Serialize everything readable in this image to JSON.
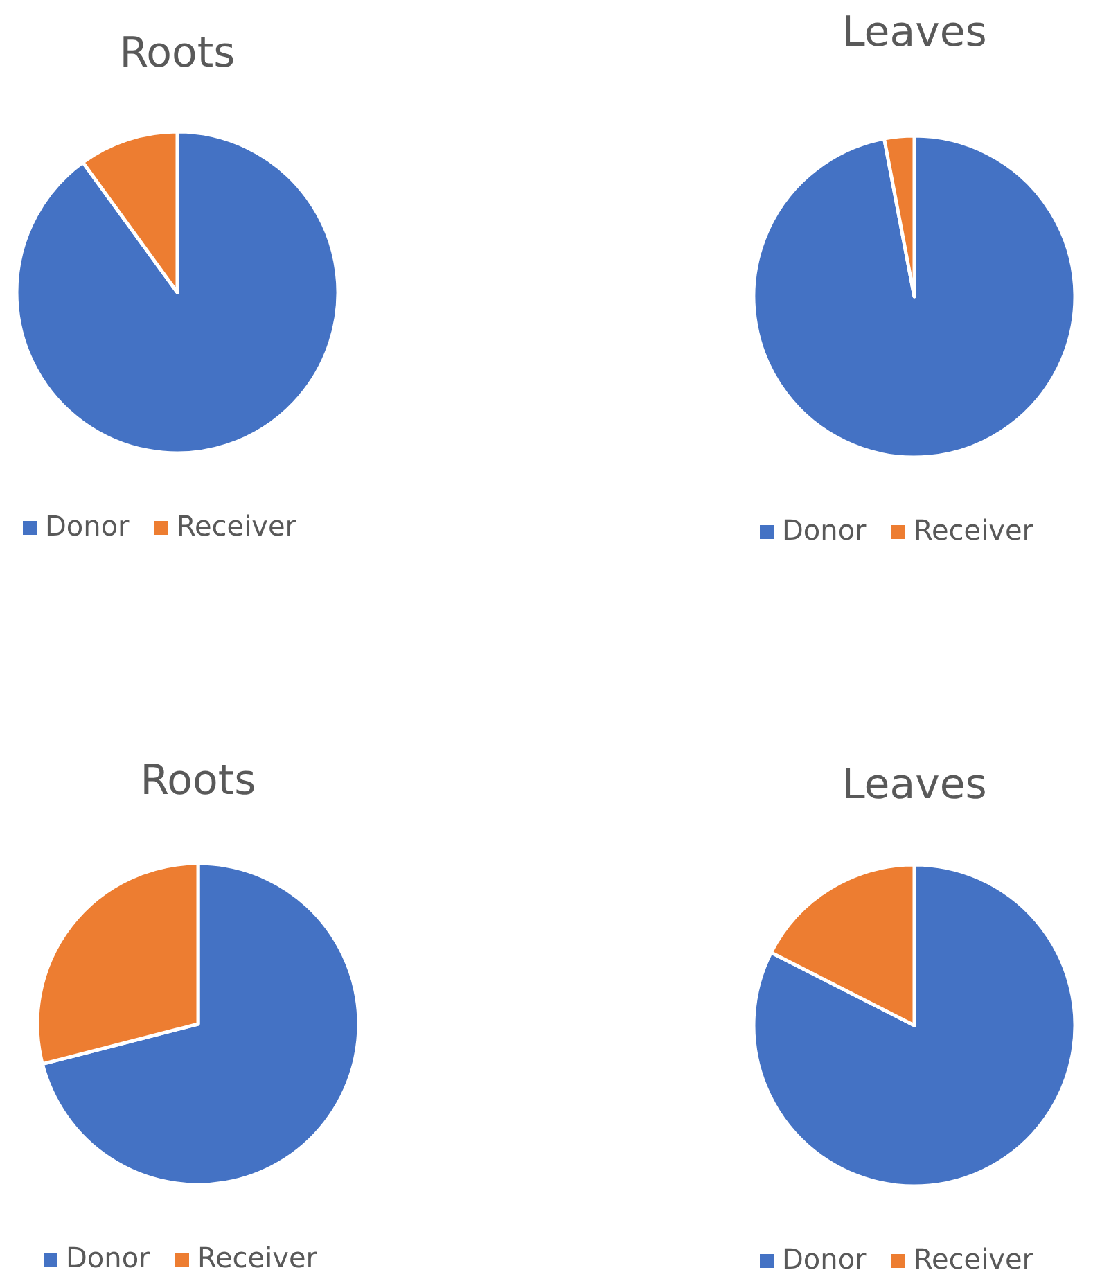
{
  "chart_data": [
    {
      "type": "pie",
      "title": "Roots",
      "categories": [
        "Donor",
        "Receiver"
      ],
      "values": [
        90,
        10
      ],
      "colors": [
        "#4472c4",
        "#ed7d31"
      ],
      "legend": "bottom"
    },
    {
      "type": "pie",
      "title": "Leaves",
      "categories": [
        "Donor",
        "Receiver"
      ],
      "values": [
        97,
        3
      ],
      "colors": [
        "#4472c4",
        "#ed7d31"
      ],
      "legend": "bottom"
    },
    {
      "type": "pie",
      "title": "Roots",
      "categories": [
        "Donor",
        "Receiver"
      ],
      "values": [
        71,
        29
      ],
      "colors": [
        "#4472c4",
        "#ed7d31"
      ],
      "legend": "bottom"
    },
    {
      "type": "pie",
      "title": "Leaves",
      "categories": [
        "Donor",
        "Receiver"
      ],
      "values": [
        82.5,
        17.5
      ],
      "colors": [
        "#4472c4",
        "#ed7d31"
      ],
      "legend": "bottom"
    }
  ]
}
